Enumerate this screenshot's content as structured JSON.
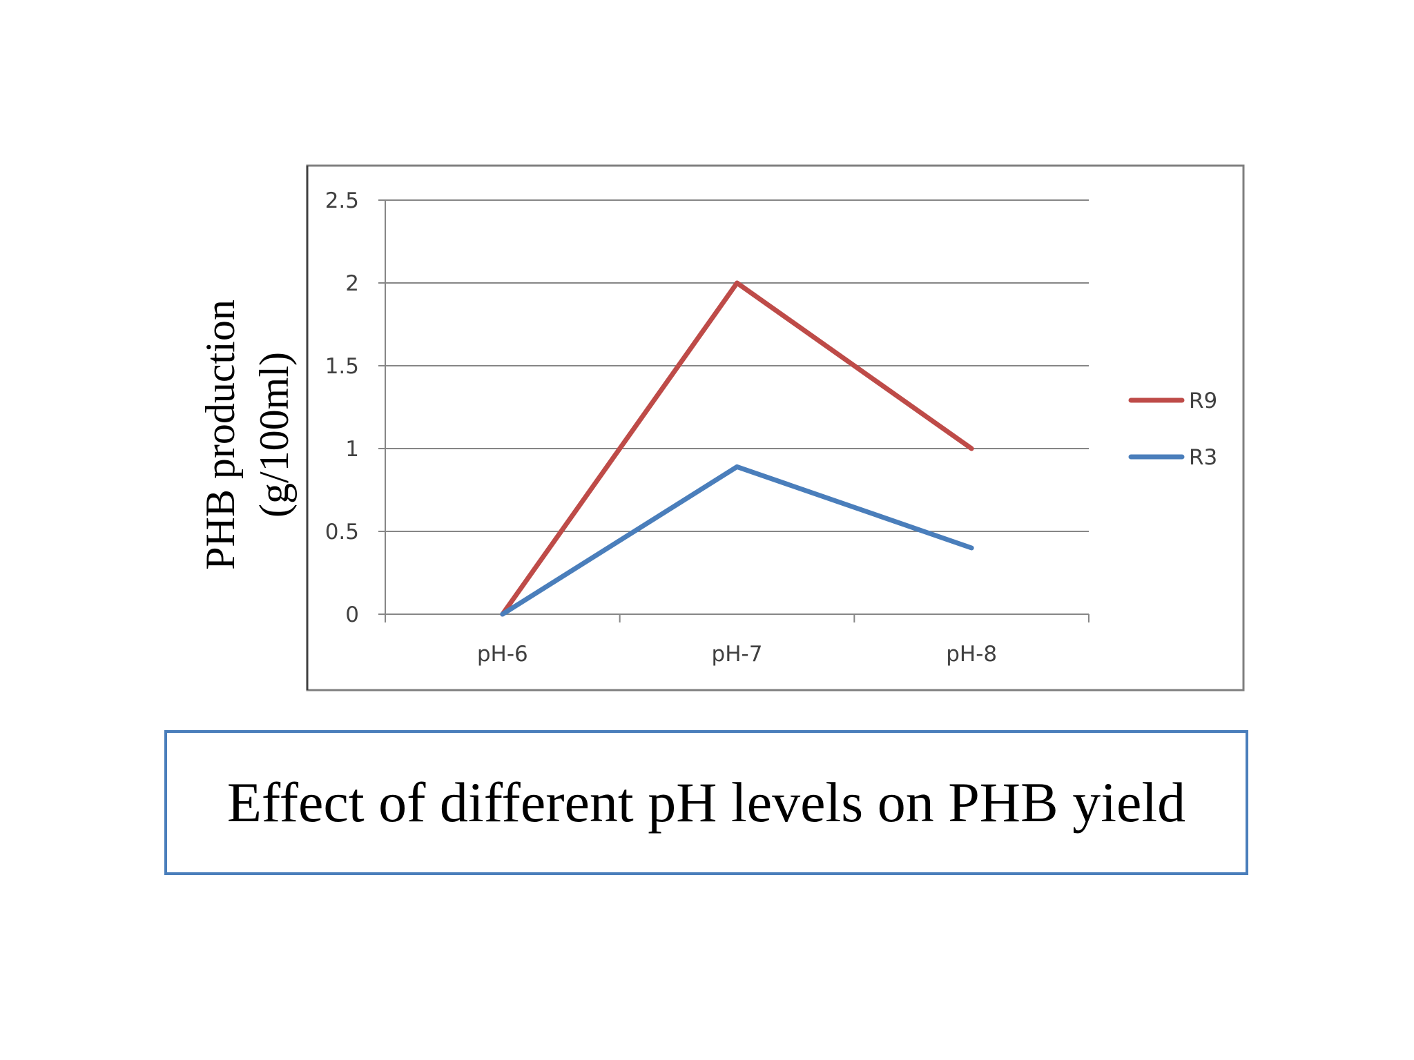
{
  "slide": {
    "caption": "Effect of different pH levels on PHB yield"
  },
  "chart_data": {
    "type": "line",
    "categories": [
      "pH-6",
      "pH-7",
      "pH-8"
    ],
    "series": [
      {
        "name": "R9",
        "values": [
          0,
          2.0,
          1.0
        ],
        "color": "#be4b48"
      },
      {
        "name": "R3",
        "values": [
          0,
          0.89,
          0.4
        ],
        "color": "#4a7ebb"
      }
    ],
    "ylabel_lines": [
      "PHB production",
      "(g/100ml)"
    ],
    "yticks": [
      "0",
      "0.5",
      "1",
      "1.5",
      "2",
      "2.5"
    ],
    "ylim": [
      0,
      2.5
    ],
    "grid": true,
    "legend_position": "right",
    "colors": {
      "gridline": "#868686",
      "axis": "#868686",
      "frame": "#7f7f7f",
      "caption_border": "#4a7ebb"
    }
  }
}
